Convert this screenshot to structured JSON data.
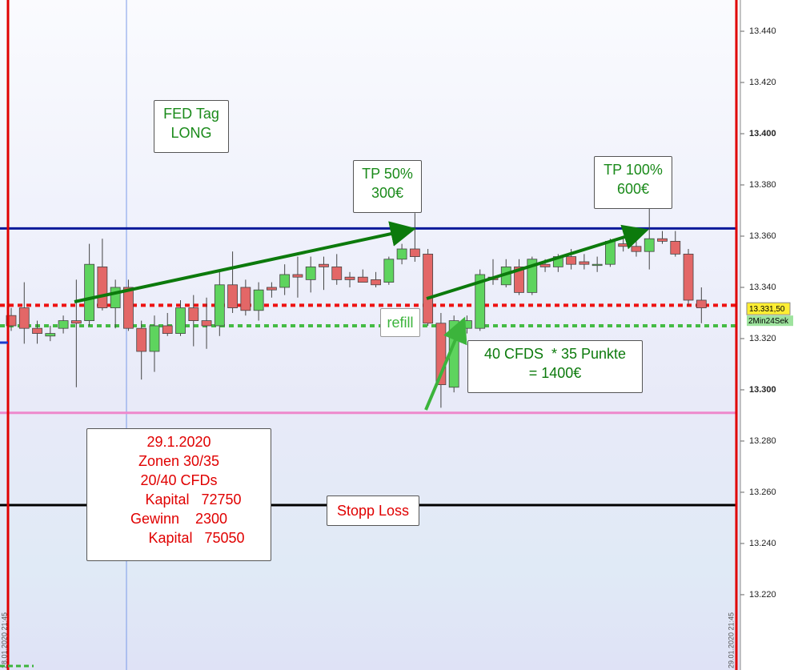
{
  "chart_data": {
    "type": "candlestick",
    "ylim": [
      13.1906,
      13.4522
    ],
    "yticks": [
      {
        "value": 13.22,
        "label": "13.220"
      },
      {
        "value": 13.24,
        "label": "13.240"
      },
      {
        "value": 13.26,
        "label": "13.260"
      },
      {
        "value": 13.28,
        "label": "13.280"
      },
      {
        "value": 13.3,
        "label": "13.300"
      },
      {
        "value": 13.32,
        "label": "13.320"
      },
      {
        "value": 13.34,
        "label": "13.340"
      },
      {
        "value": 13.36,
        "label": "13.360"
      },
      {
        "value": 13.38,
        "label": "13.380"
      },
      {
        "value": 13.4,
        "label": "13.400"
      },
      {
        "value": 13.42,
        "label": "13.420"
      },
      {
        "value": 13.44,
        "label": "13.440"
      }
    ],
    "bold_ticks": [
      13.3,
      13.4
    ],
    "up_color": "#5ed45e",
    "down_color": "#e36767",
    "open": [
      13.329,
      13.332,
      13.324,
      13.321,
      13.324,
      13.327,
      13.327,
      13.348,
      13.332,
      13.34,
      13.324,
      13.315,
      13.325,
      13.322,
      13.332,
      13.327,
      13.325,
      13.341,
      13.34,
      13.331,
      13.34,
      13.34,
      13.345,
      13.343,
      13.349,
      13.348,
      13.344,
      13.344,
      13.343,
      13.342,
      13.351,
      13.355,
      13.353,
      13.326,
      13.301,
      13.324,
      13.324,
      13.344,
      13.341,
      13.348,
      13.338,
      13.349,
      13.348,
      13.352,
      13.35,
      13.349,
      13.349,
      13.357,
      13.356,
      13.354,
      13.359,
      13.358,
      13.353,
      13.335
    ],
    "high": [
      13.332,
      13.342,
      13.327,
      13.325,
      13.329,
      13.343,
      13.357,
      13.359,
      13.343,
      13.343,
      13.327,
      13.329,
      13.33,
      13.335,
      13.337,
      13.336,
      13.347,
      13.354,
      13.343,
      13.342,
      13.342,
      13.349,
      13.352,
      13.352,
      13.352,
      13.353,
      13.346,
      13.347,
      13.346,
      13.352,
      13.357,
      13.369,
      13.355,
      13.33,
      13.329,
      13.329,
      13.347,
      13.351,
      13.351,
      13.351,
      13.352,
      13.351,
      13.353,
      13.355,
      13.353,
      13.352,
      13.359,
      13.359,
      13.358,
      13.372,
      13.362,
      13.362,
      13.355,
      13.34
    ],
    "low": [
      13.323,
      13.318,
      13.318,
      13.319,
      13.322,
      13.301,
      13.325,
      13.331,
      13.324,
      13.323,
      13.304,
      13.307,
      13.321,
      13.321,
      13.317,
      13.316,
      13.321,
      13.33,
      13.329,
      13.327,
      13.336,
      13.337,
      13.336,
      13.338,
      13.339,
      13.341,
      13.34,
      13.342,
      13.34,
      13.341,
      13.349,
      13.35,
      13.325,
      13.293,
      13.299,
      13.322,
      13.323,
      13.341,
      13.34,
      13.337,
      13.337,
      13.346,
      13.346,
      13.347,
      13.347,
      13.346,
      13.348,
      13.354,
      13.352,
      13.347,
      13.357,
      13.352,
      13.333,
      13.326
    ],
    "close": [
      13.325,
      13.324,
      13.322,
      13.322,
      13.327,
      13.326,
      13.349,
      13.332,
      13.34,
      13.324,
      13.315,
      13.325,
      13.322,
      13.332,
      13.327,
      13.325,
      13.341,
      13.332,
      13.331,
      13.339,
      13.339,
      13.345,
      13.344,
      13.348,
      13.348,
      13.343,
      13.343,
      13.342,
      13.341,
      13.351,
      13.355,
      13.352,
      13.326,
      13.302,
      13.327,
      13.327,
      13.345,
      13.343,
      13.348,
      13.338,
      13.351,
      13.348,
      13.352,
      13.349,
      13.349,
      13.349,
      13.358,
      13.356,
      13.354,
      13.359,
      13.358,
      13.353,
      13.335,
      13.332
    ],
    "levels": [
      {
        "value": 13.363,
        "color": "#0a1a9a",
        "style": "solid"
      },
      {
        "value": 13.333,
        "color": "#ee1111",
        "style": "dotted"
      },
      {
        "value": 13.325,
        "color": "#44bb44",
        "style": "dotted"
      },
      {
        "value": 13.291,
        "color": "#ee88cc",
        "style": "solid"
      },
      {
        "value": 13.255,
        "color": "#000000",
        "style": "solid"
      }
    ],
    "last_price": {
      "value": 13.3315,
      "label": "13.331,50"
    },
    "timer": "2Min24Sek",
    "session_labels": [
      "28.01.2020 21:45",
      "29.01.2020 21:45"
    ],
    "annotations": {
      "fed": [
        "FED Tag",
        "LONG"
      ],
      "tp50": [
        "TP 50%",
        "300€"
      ],
      "tp100": [
        "TP 100%",
        "600€"
      ],
      "refill": "refill",
      "cfds": [
        "40 CFDS  * 35 Punkte",
        "= 1400€"
      ],
      "summary": [
        "29.1.2020",
        "Zonen 30/35",
        "20/40 CFDs",
        "Kapital   72750",
        "Gewinn    2300",
        "Kapital   75050"
      ],
      "stop": "Stopp Loss"
    }
  }
}
